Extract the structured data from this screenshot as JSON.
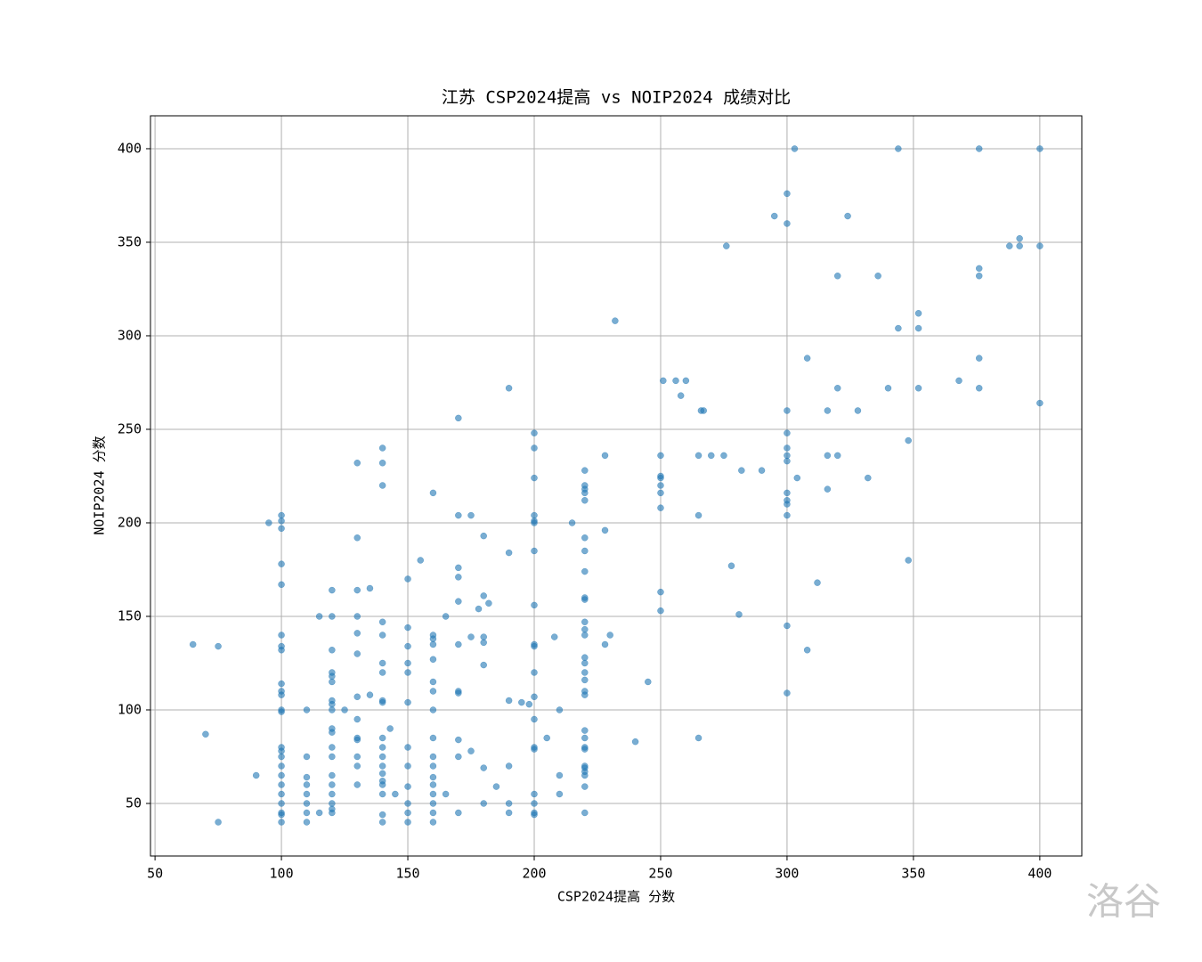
{
  "chart_data": {
    "type": "scatter",
    "title": "江苏 CSP2024提高 vs NOIP2024 成绩对比",
    "xlabel": "CSP2024提高 分数",
    "ylabel": "NOIP2024 分数",
    "color": "#1f77b4",
    "grid": true,
    "xlim": [
      48.2,
      416.6
    ],
    "ylim": [
      21.9,
      417.6
    ],
    "xticks": [
      50,
      100,
      150,
      200,
      250,
      300,
      350,
      400
    ],
    "yticks": [
      50,
      100,
      150,
      200,
      250,
      300,
      350,
      400
    ],
    "x": [
      65,
      70,
      75,
      75,
      90,
      95,
      100,
      100,
      100,
      100,
      100,
      100,
      100,
      100,
      100,
      100,
      100,
      100,
      100,
      100,
      100,
      100,
      100,
      100,
      100,
      100,
      100,
      100,
      100,
      100,
      110,
      110,
      110,
      110,
      110,
      110,
      110,
      110,
      115,
      115,
      120,
      120,
      120,
      120,
      120,
      120,
      120,
      120,
      120,
      120,
      120,
      120,
      120,
      120,
      120,
      120,
      120,
      120,
      120,
      125,
      130,
      130,
      130,
      130,
      130,
      130,
      130,
      130,
      130,
      130,
      130,
      130,
      130,
      135,
      135,
      140,
      140,
      140,
      140,
      140,
      140,
      140,
      140,
      140,
      140,
      140,
      140,
      140,
      140,
      140,
      140,
      140,
      140,
      140,
      143,
      145,
      150,
      150,
      150,
      150,
      150,
      150,
      150,
      150,
      150,
      150,
      150,
      150,
      155,
      160,
      160,
      160,
      160,
      160,
      160,
      160,
      160,
      160,
      160,
      160,
      160,
      160,
      160,
      160,
      160,
      160,
      165,
      165,
      170,
      170,
      170,
      170,
      170,
      170,
      170,
      170,
      170,
      170,
      170,
      175,
      175,
      175,
      178,
      180,
      180,
      180,
      180,
      180,
      180,
      180,
      182,
      185,
      190,
      190,
      190,
      190,
      190,
      190,
      195,
      198,
      200,
      200,
      200,
      200,
      200,
      200,
      200,
      200,
      200,
      200,
      200,
      200,
      200,
      200,
      200,
      200,
      200,
      200,
      200,
      205,
      208,
      210,
      210,
      210,
      215,
      220,
      220,
      220,
      220,
      220,
      220,
      220,
      220,
      220,
      220,
      220,
      220,
      220,
      220,
      220,
      220,
      220,
      220,
      220,
      220,
      220,
      220,
      220,
      220,
      220,
      220,
      220,
      220,
      220,
      228,
      228,
      228,
      230,
      232,
      240,
      245,
      250,
      250,
      250,
      250,
      250,
      250,
      250,
      250,
      251,
      256,
      258,
      260,
      265,
      265,
      265,
      266,
      267,
      270,
      275,
      276,
      278,
      281,
      282,
      290,
      295,
      300,
      300,
      300,
      300,
      300,
      300,
      300,
      300,
      300,
      300,
      300,
      300,
      300,
      303,
      304,
      308,
      308,
      312,
      316,
      316,
      316,
      320,
      320,
      320,
      324,
      328,
      332,
      336,
      340,
      344,
      344,
      348,
      348,
      352,
      352,
      352,
      368,
      376,
      376,
      376,
      376,
      376,
      388,
      392,
      392,
      400,
      400,
      400
    ],
    "values": [
      135,
      87,
      134,
      40,
      65,
      200,
      204,
      201,
      197,
      178,
      167,
      140,
      134,
      132,
      114,
      110,
      108,
      100,
      99,
      80,
      78,
      75,
      70,
      65,
      60,
      55,
      50,
      45,
      44,
      40,
      100,
      75,
      64,
      60,
      55,
      50,
      45,
      40,
      150,
      45,
      164,
      150,
      132,
      120,
      118,
      115,
      105,
      103,
      100,
      90,
      88,
      80,
      75,
      65,
      60,
      55,
      50,
      47,
      45,
      100,
      232,
      192,
      164,
      150,
      141,
      130,
      107,
      95,
      85,
      84,
      75,
      70,
      60,
      165,
      108,
      240,
      232,
      220,
      147,
      140,
      125,
      120,
      105,
      104,
      85,
      80,
      75,
      70,
      66,
      62,
      60,
      55,
      44,
      40,
      90,
      55,
      170,
      144,
      134,
      125,
      120,
      104,
      80,
      70,
      59,
      50,
      45,
      40,
      180,
      216,
      140,
      138,
      135,
      127,
      115,
      110,
      100,
      85,
      75,
      70,
      64,
      60,
      55,
      50,
      45,
      40,
      150,
      55,
      256,
      204,
      176,
      171,
      158,
      135,
      110,
      109,
      84,
      75,
      45,
      204,
      139,
      78,
      154,
      193,
      161,
      139,
      136,
      124,
      69,
      50,
      157,
      59,
      272,
      184,
      105,
      70,
      50,
      45,
      104,
      103,
      248,
      240,
      224,
      204,
      201,
      200,
      185,
      156,
      135,
      134,
      120,
      107,
      95,
      80,
      79,
      55,
      50,
      45,
      44,
      85,
      139,
      100,
      65,
      55,
      200,
      228,
      220,
      218,
      216,
      212,
      192,
      185,
      174,
      160,
      159,
      147,
      143,
      140,
      128,
      125,
      120,
      116,
      110,
      108,
      89,
      85,
      80,
      79,
      70,
      69,
      67,
      65,
      59,
      45,
      236,
      196,
      135,
      140,
      308,
      83,
      115,
      236,
      225,
      224,
      220,
      216,
      208,
      163,
      153,
      276,
      276,
      268,
      276,
      236,
      204,
      85,
      260,
      260,
      236,
      236,
      348,
      177,
      151,
      228,
      228,
      364,
      376,
      360,
      260,
      248,
      240,
      236,
      233,
      216,
      212,
      210,
      204,
      145,
      109,
      400,
      224,
      288,
      132,
      168,
      260,
      236,
      218,
      332,
      272,
      236,
      364,
      260,
      224,
      332,
      272,
      400,
      304,
      244,
      180,
      312,
      304,
      272,
      276,
      400,
      336,
      332,
      288,
      272,
      348,
      352,
      348,
      400,
      348,
      264
    ]
  },
  "watermark": "洛谷"
}
